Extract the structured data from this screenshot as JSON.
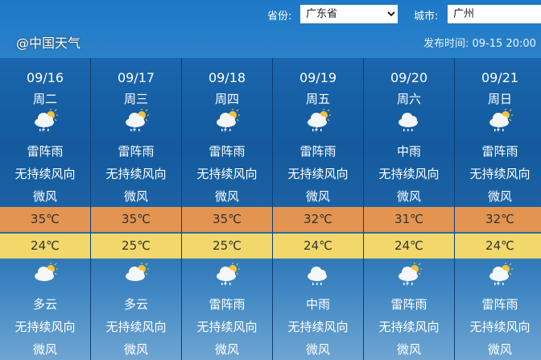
{
  "header": {
    "province_label": "省份:",
    "province_value": "广东省",
    "city_label": "城市:",
    "city_value": "广州",
    "publish_label": "发布时间:",
    "publish_time": "09-15 20:00"
  },
  "days": [
    {
      "date": "09/16",
      "weekday": "周二",
      "day_icon": "thunderstorm-sun-icon",
      "day_weather": "雷阵雨",
      "day_wind_dir": "无持续风向",
      "day_wind": "微风",
      "high": "35℃",
      "low": "24℃",
      "night_icon": "partly-cloudy-icon",
      "night_weather": "多云",
      "night_wind_dir": "无持续风向",
      "night_wind": "微风"
    },
    {
      "date": "09/17",
      "weekday": "周三",
      "day_icon": "thunderstorm-sun-icon",
      "day_weather": "雷阵雨",
      "day_wind_dir": "无持续风向",
      "day_wind": "微风",
      "high": "35℃",
      "low": "25℃",
      "night_icon": "partly-cloudy-icon",
      "night_weather": "多云",
      "night_wind_dir": "无持续风向",
      "night_wind": "微风"
    },
    {
      "date": "09/18",
      "weekday": "周四",
      "day_icon": "thunderstorm-sun-icon",
      "day_weather": "雷阵雨",
      "day_wind_dir": "无持续风向",
      "day_wind": "微风",
      "high": "35℃",
      "low": "25℃",
      "night_icon": "thunderstorm-sun-icon",
      "night_weather": "雷阵雨",
      "night_wind_dir": "无持续风向",
      "night_wind": "微风"
    },
    {
      "date": "09/19",
      "weekday": "周五",
      "day_icon": "thunderstorm-sun-icon",
      "day_weather": "雷阵雨",
      "day_wind_dir": "无持续风向",
      "day_wind": "微风",
      "high": "32℃",
      "low": "24℃",
      "night_icon": "rain-icon",
      "night_weather": "中雨",
      "night_wind_dir": "无持续风向",
      "night_wind": "微风"
    },
    {
      "date": "09/20",
      "weekday": "周六",
      "day_icon": "rain-icon",
      "day_weather": "中雨",
      "day_wind_dir": "无持续风向",
      "day_wind": "微风",
      "high": "31℃",
      "low": "24℃",
      "night_icon": "thunderstorm-sun-icon",
      "night_weather": "雷阵雨",
      "night_wind_dir": "无持续风向",
      "night_wind": "微风"
    },
    {
      "date": "09/21",
      "weekday": "周日",
      "day_icon": "thunderstorm-sun-icon",
      "day_weather": "雷阵雨",
      "day_wind_dir": "无持续风向",
      "day_wind": "微风",
      "high": "32℃",
      "low": "24℃",
      "night_icon": "thunderstorm-sun-icon",
      "night_weather": "雷阵雨",
      "night_wind_dir": "无持续风向",
      "night_wind": "微风"
    }
  ],
  "watermark": "@中国天气",
  "colors": {
    "high_band": "#e39450",
    "low_band": "#f2d86a"
  }
}
